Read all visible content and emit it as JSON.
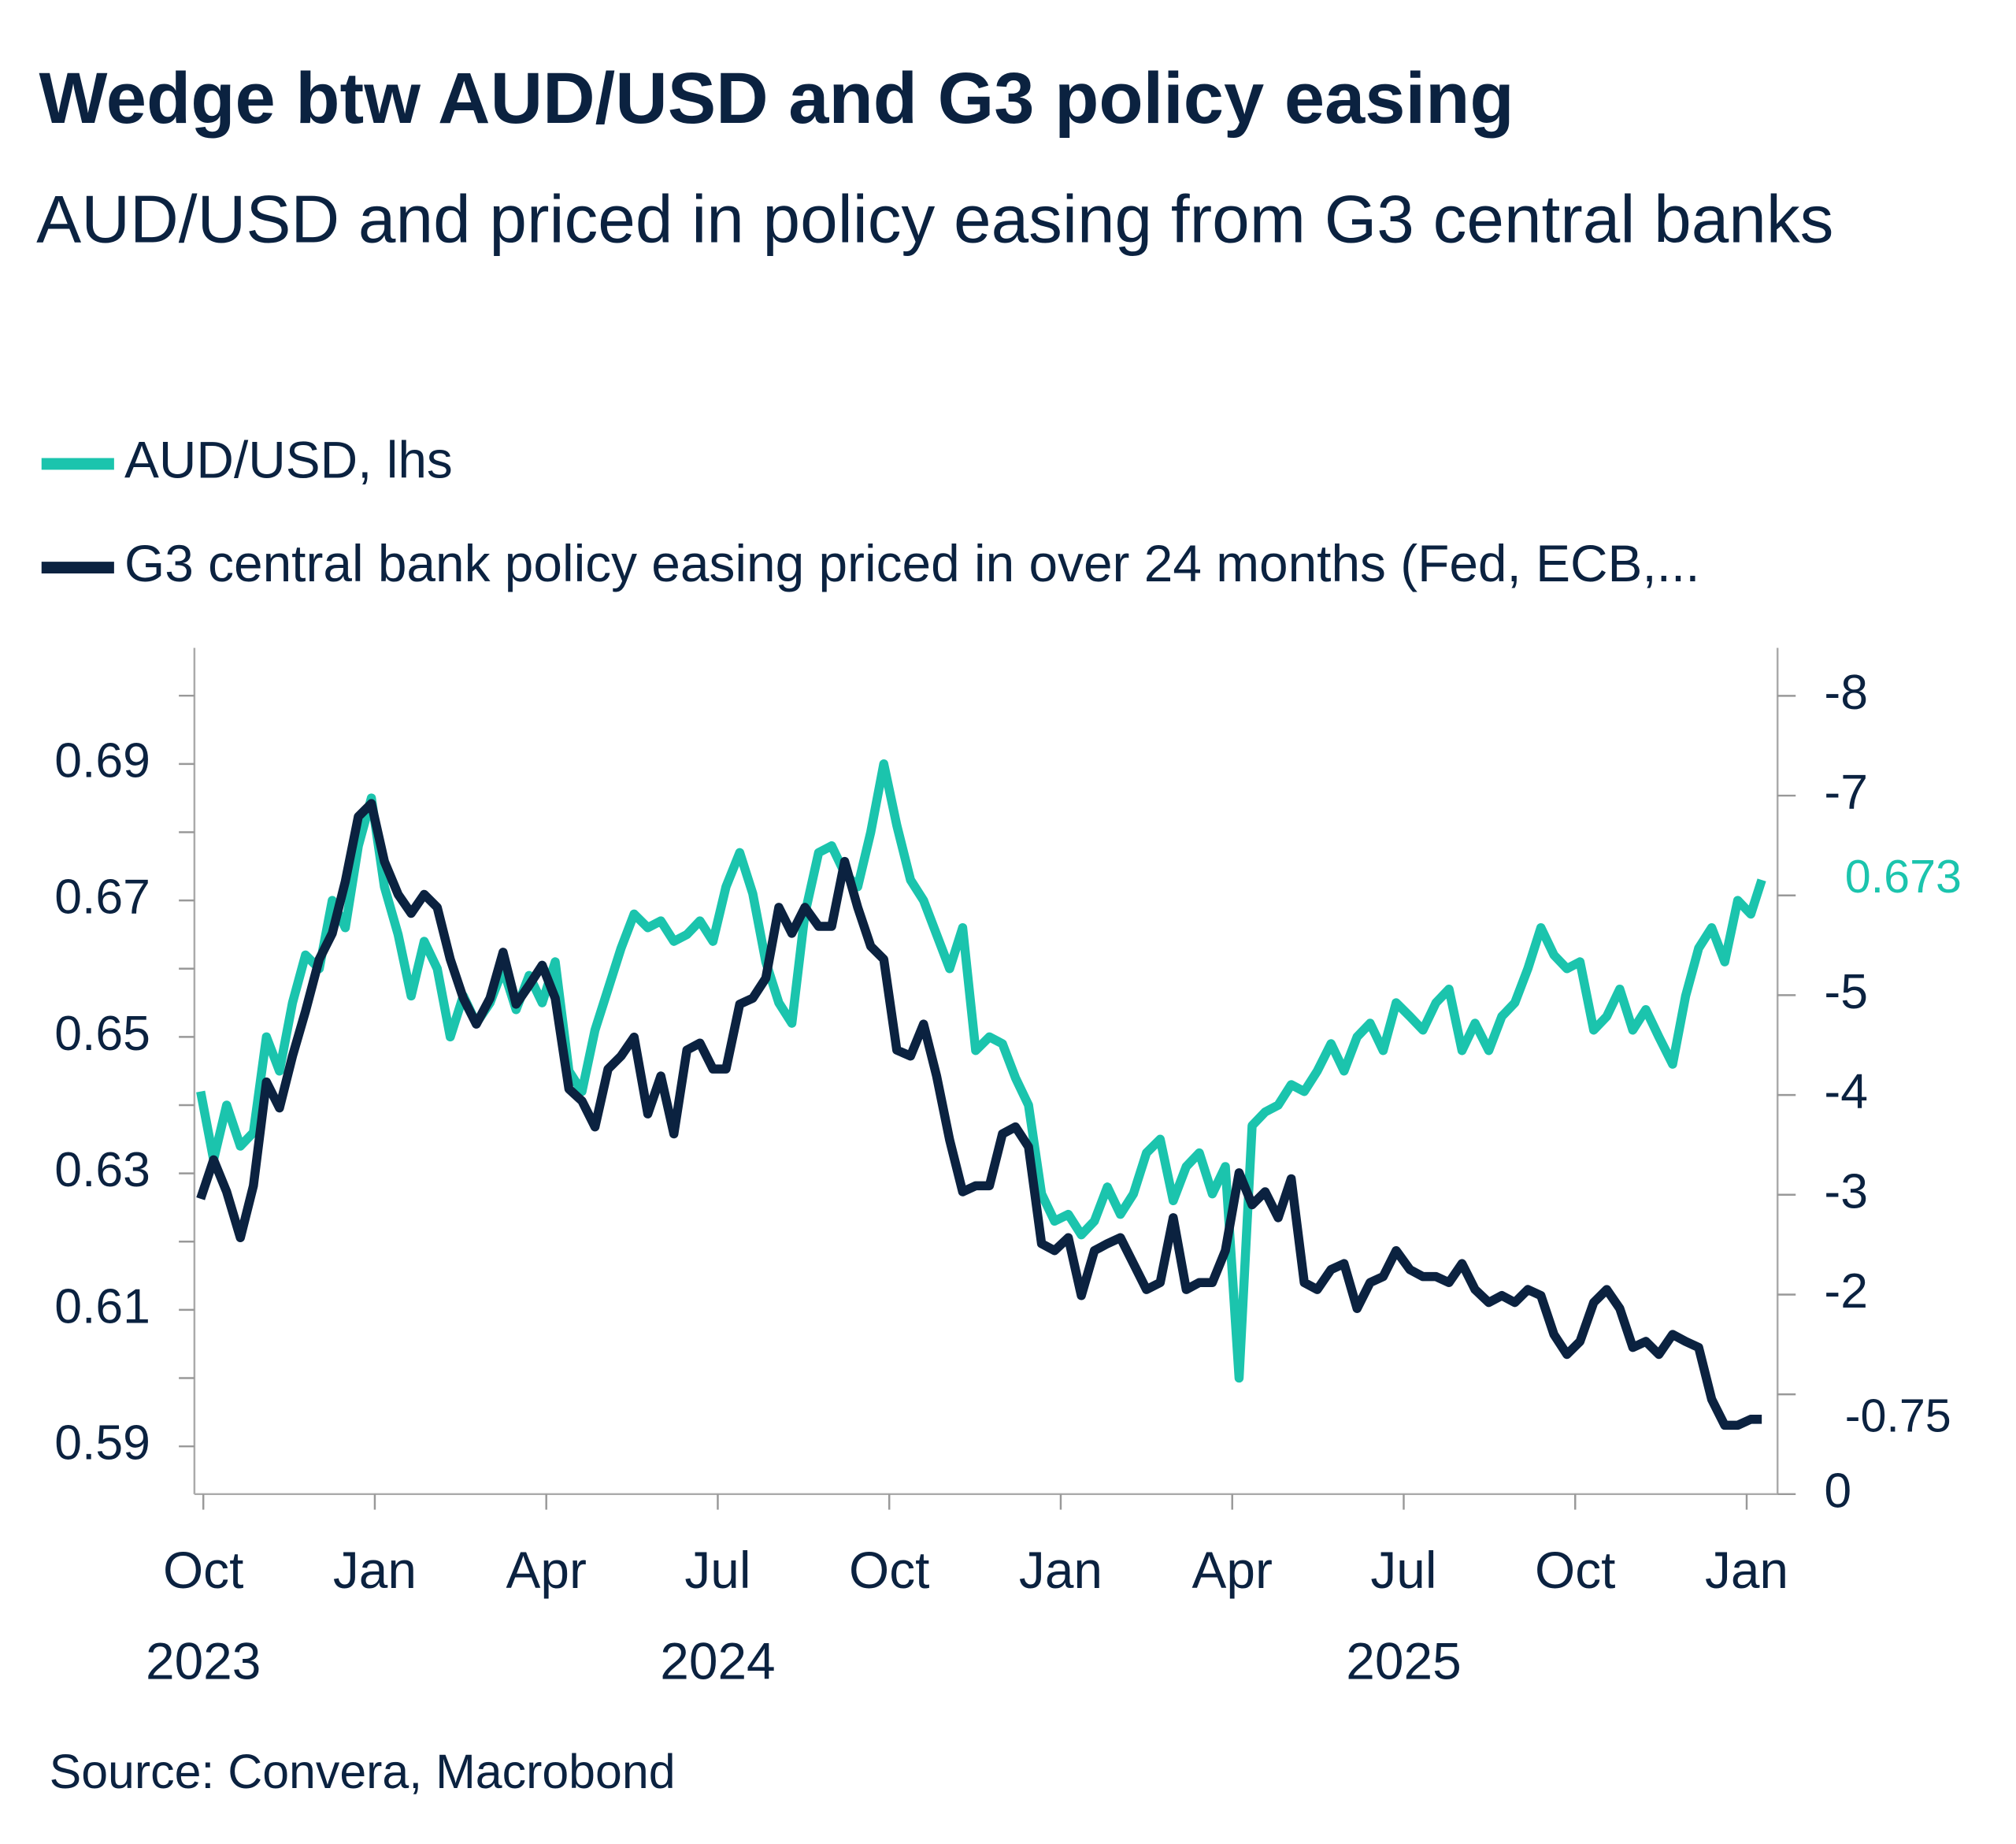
{
  "chart_data": {
    "type": "line",
    "title": "Wedge btw AUD/USD and G3 policy easing",
    "subtitle": "AUD/USD and priced in policy easing from G3 central banks",
    "source": "Source: Convera, Macrobond",
    "x": [
      2023.746,
      2023.765,
      2023.784,
      2023.804,
      2023.823,
      2023.842,
      2023.861,
      2023.88,
      2023.899,
      2023.919,
      2023.938,
      2023.957,
      2023.976,
      2023.995,
      2024.014,
      2024.034,
      2024.053,
      2024.072,
      2024.091,
      2024.11,
      2024.129,
      2024.148,
      2024.168,
      2024.187,
      2024.206,
      2024.225,
      2024.244,
      2024.263,
      2024.283,
      2024.302,
      2024.321,
      2024.34,
      2024.359,
      2024.378,
      2024.398,
      2024.417,
      2024.436,
      2024.455,
      2024.474,
      2024.493,
      2024.512,
      2024.532,
      2024.551,
      2024.57,
      2024.589,
      2024.608,
      2024.627,
      2024.647,
      2024.666,
      2024.685,
      2024.704,
      2024.723,
      2024.742,
      2024.761,
      2024.781,
      2024.8,
      2024.819,
      2024.838,
      2024.857,
      2024.876,
      2024.896,
      2024.915,
      2024.934,
      2024.953,
      2024.972,
      2024.991,
      2025.011,
      2025.03,
      2025.049,
      2025.068,
      2025.087,
      2025.106,
      2025.125,
      2025.145,
      2025.164,
      2025.183,
      2025.202,
      2025.221,
      2025.24,
      2025.26,
      2025.279,
      2025.298,
      2025.317,
      2025.336,
      2025.355,
      2025.374,
      2025.394,
      2025.413,
      2025.432,
      2025.451,
      2025.47,
      2025.489,
      2025.509,
      2025.528,
      2025.547,
      2025.566,
      2025.585,
      2025.604,
      2025.624,
      2025.643,
      2025.662,
      2025.681,
      2025.7,
      2025.719,
      2025.738,
      2025.757,
      2025.777,
      2025.796,
      2025.815,
      2025.834,
      2025.853,
      2025.872,
      2025.892,
      2025.911,
      2025.93,
      2025.949,
      2025.968,
      2025.987,
      2026.006,
      2026.022
    ],
    "series": [
      {
        "name": "AUD/USD, lhs",
        "color": "#1bc4ad",
        "axis": "y",
        "end_label": "0.673",
        "values": [
          0.642,
          0.632,
          0.64,
          0.634,
          0.636,
          0.65,
          0.645,
          0.655,
          0.662,
          0.66,
          0.67,
          0.666,
          0.678,
          0.685,
          0.672,
          0.665,
          0.656,
          0.664,
          0.66,
          0.65,
          0.656,
          0.652,
          0.655,
          0.66,
          0.654,
          0.659,
          0.655,
          0.661,
          0.645,
          0.642,
          0.651,
          0.657,
          0.663,
          0.668,
          0.666,
          0.667,
          0.664,
          0.665,
          0.667,
          0.664,
          0.672,
          0.677,
          0.671,
          0.661,
          0.655,
          0.652,
          0.668,
          0.677,
          0.678,
          0.674,
          0.672,
          0.68,
          0.69,
          0.681,
          0.673,
          0.67,
          0.665,
          0.66,
          0.666,
          0.648,
          0.65,
          0.649,
          0.644,
          0.64,
          0.627,
          0.623,
          0.624,
          0.621,
          0.623,
          0.628,
          0.624,
          0.627,
          0.633,
          0.635,
          0.626,
          0.631,
          0.633,
          0.627,
          0.631,
          0.6,
          0.637,
          0.639,
          0.64,
          0.643,
          0.642,
          0.645,
          0.649,
          0.645,
          0.65,
          0.652,
          0.648,
          0.655,
          0.653,
          0.651,
          0.655,
          0.657,
          0.648,
          0.652,
          0.648,
          0.653,
          0.655,
          0.66,
          0.666,
          0.662,
          0.66,
          0.661,
          0.651,
          0.653,
          0.657,
          0.651,
          0.654,
          0.65,
          0.646,
          0.656,
          0.663,
          0.666,
          0.661,
          0.67,
          0.668,
          0.673
        ]
      },
      {
        "name": "G3 central bank policy easing priced in over 24 months (Fed, ECB,...",
        "color": "#0b2240",
        "axis": "y2",
        "end_label": "-0.75",
        "values": [
          -2.96,
          -3.35,
          -3.03,
          -2.57,
          -3.09,
          -4.13,
          -3.87,
          -4.39,
          -4.84,
          -5.36,
          -5.62,
          -6.14,
          -6.79,
          -6.92,
          -6.34,
          -6.01,
          -5.82,
          -6.01,
          -5.88,
          -5.36,
          -4.97,
          -4.71,
          -4.97,
          -5.43,
          -4.91,
          -5.1,
          -5.3,
          -4.97,
          -4.06,
          -3.94,
          -3.68,
          -4.26,
          -4.39,
          -4.58,
          -3.81,
          -4.19,
          -3.61,
          -4.45,
          -4.52,
          -4.26,
          -4.26,
          -4.91,
          -4.97,
          -5.17,
          -5.88,
          -5.62,
          -5.88,
          -5.69,
          -5.69,
          -6.34,
          -5.88,
          -5.49,
          -5.36,
          -4.45,
          -4.39,
          -4.71,
          -4.19,
          -3.55,
          -3.03,
          -3.09,
          -3.09,
          -3.61,
          -3.68,
          -3.48,
          -2.51,
          -2.44,
          -2.57,
          -1.99,
          -2.44,
          -2.51,
          -2.57,
          -2.31,
          -2.05,
          -2.12,
          -2.77,
          -2.05,
          -2.12,
          -2.12,
          -2.44,
          -3.22,
          -2.9,
          -3.03,
          -2.77,
          -3.16,
          -2.12,
          -2.05,
          -2.25,
          -2.31,
          -1.86,
          -2.12,
          -2.18,
          -2.44,
          -2.25,
          -2.18,
          -2.18,
          -2.12,
          -2.31,
          -2.05,
          -1.92,
          -1.99,
          -1.92,
          -2.05,
          -1.99,
          -1.6,
          -1.4,
          -1.53,
          -1.92,
          -2.05,
          -1.86,
          -1.47,
          -1.53,
          -1.4,
          -1.6,
          -1.53,
          -1.47,
          -0.95,
          -0.69,
          -0.69,
          -0.75,
          -0.75
        ]
      }
    ],
    "xlim": [
      2023.737,
      2026.045
    ],
    "xticks": [
      {
        "value": 2023.75,
        "label": "Oct"
      },
      {
        "value": 2024.0,
        "label": "Jan"
      },
      {
        "value": 2024.25,
        "label": "Apr"
      },
      {
        "value": 2024.5,
        "label": "Jul"
      },
      {
        "value": 2024.75,
        "label": "Oct"
      },
      {
        "value": 2025.0,
        "label": "Jan"
      },
      {
        "value": 2025.25,
        "label": "Apr"
      },
      {
        "value": 2025.5,
        "label": "Jul"
      },
      {
        "value": 2025.75,
        "label": "Oct"
      },
      {
        "value": 2026.0,
        "label": "Jan"
      }
    ],
    "xyears": [
      {
        "value": 2023.75,
        "label": "2023"
      },
      {
        "value": 2024.5,
        "label": "2024"
      },
      {
        "value": 2025.5,
        "label": "2025"
      }
    ],
    "ylim": [
      0.583,
      0.707
    ],
    "yticks": [
      0.59,
      0.61,
      0.63,
      0.65,
      0.67,
      0.69
    ],
    "yminorticks": [
      0.6,
      0.62,
      0.64,
      0.66,
      0.68,
      0.7
    ],
    "y2lim": [
      0,
      -8.48
    ],
    "y2ticks": [
      -8,
      -7,
      -5,
      -4,
      -3,
      -2,
      0
    ],
    "y2minorticks": [
      -6,
      -1
    ]
  }
}
